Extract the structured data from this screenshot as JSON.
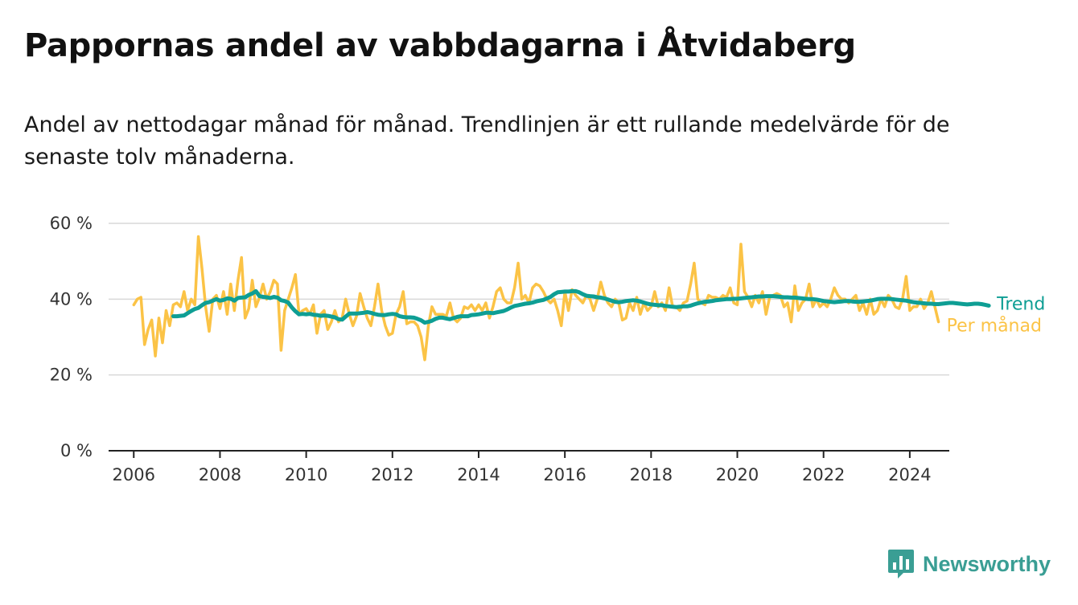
{
  "title": "Pappornas andel av vabbdagarna i Åtvidaberg",
  "subtitle": "Andel av nettodagar månad för månad. Trendlinjen är ett rullande medelvärde för de senaste tolv månaderna.",
  "logo_text": "Newsworthy",
  "colors": {
    "trend": "#0e9e94",
    "monthly": "#fbc346",
    "grid": "#d9d9d9",
    "axis": "#222222",
    "logo": "#3a9e94"
  },
  "chart_data": {
    "type": "line",
    "title": "Pappornas andel av vabbdagarna i Åtvidaberg",
    "xlabel": "",
    "ylabel": "",
    "xlim": [
      "2005-06",
      "2024-12"
    ],
    "ylim": [
      0,
      60
    ],
    "y_ticks": [
      0,
      20,
      40,
      60
    ],
    "y_tick_labels": [
      "0 %",
      "20 %",
      "40 %",
      "60 %"
    ],
    "x_ticks": [
      "2006-01",
      "2008-01",
      "2010-01",
      "2012-01",
      "2014-01",
      "2016-01",
      "2018-01",
      "2020-01",
      "2022-01",
      "2024-01"
    ],
    "x_tick_labels": [
      "2006",
      "2008",
      "2010",
      "2012",
      "2014",
      "2016",
      "2018",
      "2020",
      "2022",
      "2024"
    ],
    "grid": "horizontal",
    "legend": "right, at line ends",
    "series": [
      {
        "name": "Per månad",
        "color": "#fbc346",
        "start": "2006-01",
        "values": [
          38.5,
          40,
          40.5,
          28,
          32,
          34.5,
          25,
          35,
          28.5,
          37,
          33,
          38.5,
          39,
          38,
          42,
          37,
          40,
          38.5,
          56.5,
          48,
          38,
          31.5,
          40,
          41,
          37.5,
          42,
          36,
          44,
          37,
          45,
          51,
          35,
          37.5,
          45,
          38,
          40.5,
          44,
          40,
          42,
          45,
          44,
          26.5,
          37,
          40,
          43,
          46.5,
          36,
          37,
          37.5,
          36,
          38.5,
          31,
          36,
          37,
          32,
          34,
          37,
          34,
          35,
          40,
          36,
          33,
          35.5,
          41.5,
          38,
          35,
          33,
          38,
          44,
          37,
          33,
          30.5,
          31,
          36,
          38,
          42,
          33.5,
          34,
          34,
          33,
          30,
          24,
          33,
          38,
          36,
          36,
          36,
          35.5,
          39,
          35,
          34,
          35,
          38,
          37.5,
          38.5,
          37,
          38.5,
          37,
          39,
          35,
          38,
          42,
          43,
          40,
          39,
          39,
          43,
          49.5,
          40,
          41,
          39,
          43,
          44,
          43.5,
          42,
          40,
          39,
          40,
          37,
          33,
          42,
          37,
          42.5,
          41,
          40,
          39,
          41,
          40,
          37,
          40,
          44.5,
          41,
          39,
          38,
          40,
          39,
          34.5,
          35,
          39,
          37,
          40.5,
          36,
          39,
          37,
          38,
          42,
          38,
          39,
          37,
          43,
          38,
          38,
          37,
          39,
          39.5,
          44,
          49.5,
          40,
          39,
          38.5,
          41,
          40.5,
          40.5,
          40,
          41,
          40.5,
          43,
          39,
          38.5,
          54.5,
          42,
          40.5,
          38,
          41,
          39,
          42,
          36,
          40.5,
          41,
          41.5,
          41,
          38,
          39,
          34,
          43.5,
          37,
          39,
          40,
          44,
          38,
          40,
          38,
          39,
          38,
          40,
          43,
          41,
          40,
          40,
          39,
          40,
          41,
          37,
          39,
          36,
          40,
          36,
          37,
          40,
          38,
          41,
          40,
          38,
          37.5,
          40,
          46,
          37,
          38,
          38,
          40,
          37.5,
          39,
          42,
          38,
          34
        ]
      },
      {
        "name": "Trend",
        "color": "#0e9e94",
        "start": "2006-12",
        "values": [
          35.5,
          35.5,
          35.6,
          35.7,
          36.3,
          36.9,
          37.4,
          37.7,
          38.4,
          39,
          39.2,
          39.6,
          40,
          39.6,
          39.8,
          40.2,
          40.1,
          39.6,
          40.3,
          40.4,
          40.5,
          41.1,
          41.5,
          42.1,
          40.8,
          40.6,
          40.5,
          40.3,
          40.6,
          40.4,
          39.7,
          39.5,
          39.1,
          37.8,
          36.8,
          36,
          36.1,
          36,
          36.1,
          35.9,
          35.8,
          35.6,
          35.7,
          35.6,
          35.4,
          35.2,
          34.7,
          34.6,
          35.4,
          36.2,
          36.2,
          36.2,
          36.3,
          36.4,
          36.6,
          36.4,
          36.1,
          35.9,
          35.8,
          35.8,
          36,
          36.1,
          36,
          35.5,
          35.3,
          35.2,
          35.2,
          35.1,
          34.8,
          34.4,
          33.8,
          34,
          34.3,
          34.8,
          35.1,
          35.1,
          34.9,
          34.7,
          35,
          35.3,
          35.5,
          35.5,
          35.5,
          35.8,
          35.9,
          36,
          36.2,
          36.4,
          36.4,
          36.3,
          36.5,
          36.7,
          36.9,
          37.3,
          37.8,
          38.2,
          38.4,
          38.6,
          38.8,
          38.9,
          39.1,
          39.4,
          39.6,
          39.8,
          40.2,
          40.6,
          41.3,
          41.8,
          41.9,
          42,
          42,
          42.1,
          42.1,
          41.8,
          41.3,
          40.9,
          40.8,
          40.7,
          40.5,
          40.4,
          40.2,
          39.9,
          39.6,
          39.3,
          39.2,
          39.3,
          39.5,
          39.6,
          39.7,
          39.6,
          39.4,
          39.1,
          38.8,
          38.6,
          38.5,
          38.4,
          38.4,
          38.2,
          38.1,
          38,
          37.9,
          38,
          38.1,
          38.1,
          38.3,
          38.6,
          38.9,
          39.1,
          39.3,
          39.4,
          39.5,
          39.7,
          39.8,
          39.9,
          40,
          40,
          40.1,
          40.1,
          40.2,
          40.3,
          40.4,
          40.5,
          40.6,
          40.7,
          40.7,
          40.8,
          40.8,
          40.8,
          40.7,
          40.6,
          40.5,
          40.5,
          40.4,
          40.4,
          40.3,
          40.2,
          40.1,
          40,
          40,
          39.9,
          39.7,
          39.5,
          39.4,
          39.3,
          39.2,
          39.3,
          39.4,
          39.5,
          39.5,
          39.4,
          39.3,
          39.3,
          39.4,
          39.5,
          39.6,
          39.8,
          40,
          40.1,
          40.1,
          40.1,
          40,
          39.9,
          39.8,
          39.7,
          39.6,
          39.4,
          39.2,
          39.1,
          39,
          38.9,
          38.8,
          38.8,
          38.7,
          38.7,
          38.8,
          38.9,
          39,
          39,
          38.9,
          38.8,
          38.7,
          38.6,
          38.7,
          38.8,
          38.8,
          38.7,
          38.5,
          38.3
        ]
      }
    ]
  }
}
